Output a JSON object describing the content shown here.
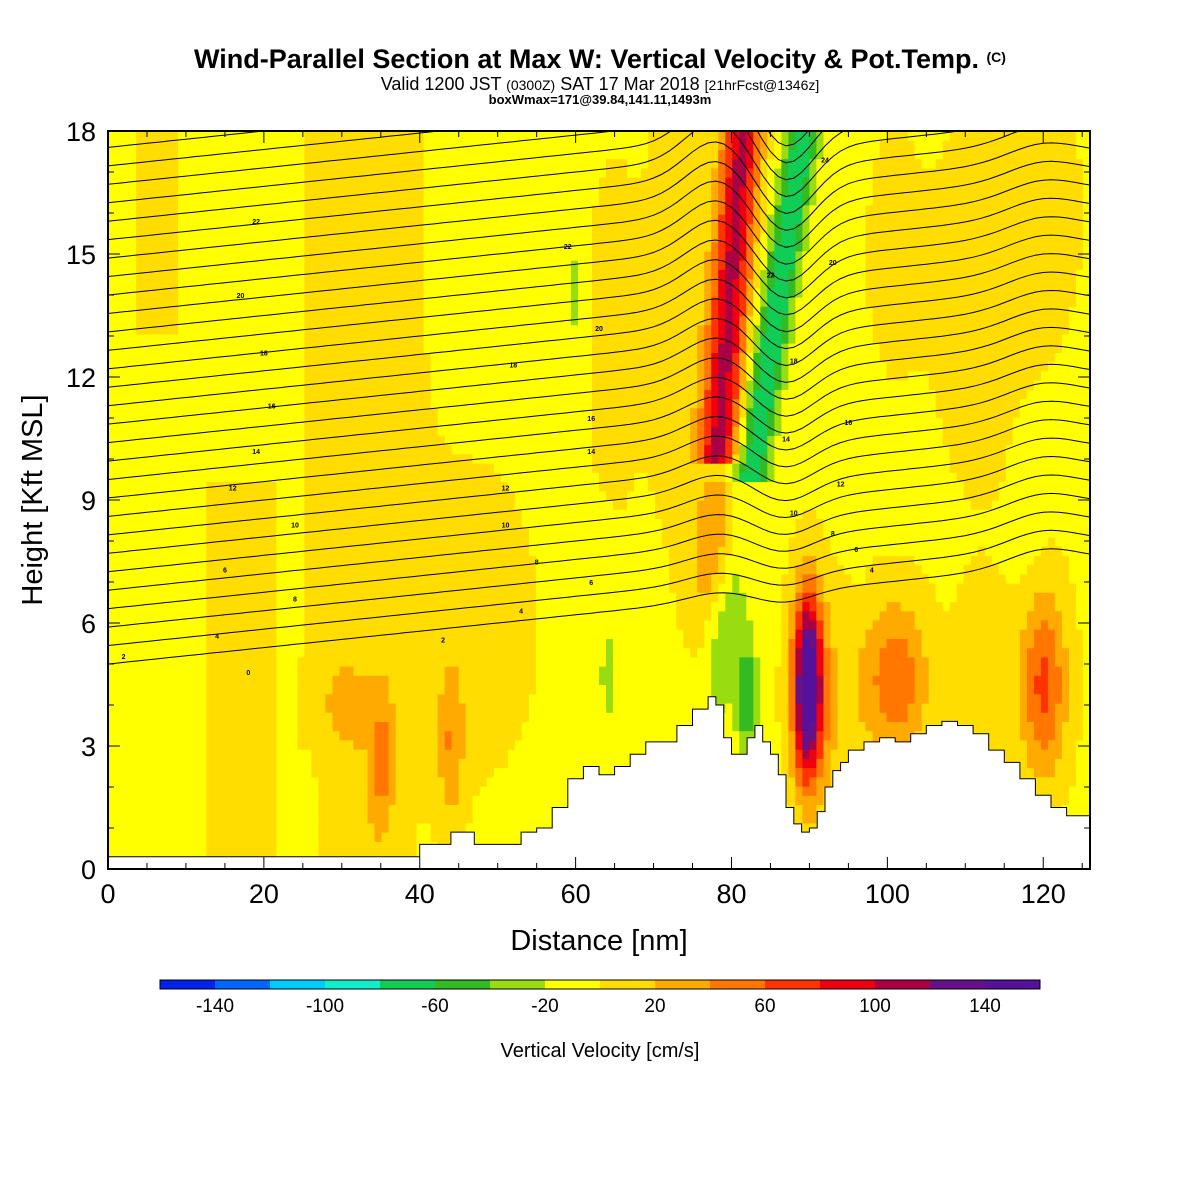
{
  "title": {
    "main": "Wind-Parallel Section at Max W: Vertical Velocity & Pot.Temp.",
    "copyright": "(C)",
    "valid_prefix": "Valid 1200 JST",
    "valid_utc": "(0300Z)",
    "valid_date": "SAT 17 Mar 2018",
    "forecast": "[21hrFcst@1346z]",
    "boxmax": "boxWmax=171@39.84,141.11,1493m"
  },
  "chart_data": {
    "type": "heatmap",
    "xlabel": "Distance [nm]",
    "ylabel": "Height [Kft MSL]",
    "xlim": [
      0,
      126
    ],
    "ylim": [
      0,
      18
    ],
    "xticks": [
      0,
      20,
      40,
      60,
      80,
      100,
      120
    ],
    "yticks": [
      0,
      3,
      6,
      9,
      12,
      15,
      18
    ],
    "colorbar": {
      "label": "Vertical Velocity [cm/s]",
      "tick_labels": [
        -140,
        -100,
        -60,
        -20,
        20,
        60,
        100,
        140
      ],
      "levels": [
        -160,
        -140,
        -120,
        -100,
        -80,
        -60,
        -40,
        -20,
        0,
        20,
        40,
        60,
        80,
        100,
        120,
        140,
        160
      ],
      "colors": [
        "#0022ee",
        "#0066ff",
        "#00ccff",
        "#11eecc",
        "#11cc55",
        "#33bb22",
        "#99dd11",
        "#ffff00",
        "#ffdd00",
        "#ffaa00",
        "#ff7700",
        "#ff3300",
        "#ee0011",
        "#aa0044",
        "#661188",
        "#551199"
      ]
    },
    "features": [
      {
        "name": "downdraft",
        "w": -70,
        "x": 86,
        "z_range": [
          10,
          18
        ]
      },
      {
        "name": "updraft",
        "w": 100,
        "x": 79,
        "z_range": [
          11,
          18
        ]
      },
      {
        "name": "updraft",
        "w": 171,
        "x": 89.5,
        "z_range": [
          1.5,
          6.5
        ]
      },
      {
        "name": "updraft",
        "w": 50,
        "x": 101,
        "z_range": [
          3,
          6
        ]
      },
      {
        "name": "updraft",
        "w": 70,
        "x": 120,
        "z_range": [
          2,
          5
        ]
      }
    ],
    "terrain_kft": {
      "x": [
        0,
        40,
        40,
        44,
        47,
        50,
        53,
        55,
        57,
        59,
        61,
        63,
        65,
        67,
        69,
        71,
        73,
        75,
        77,
        78,
        79,
        80,
        82,
        83,
        84,
        85,
        86,
        87,
        88,
        89,
        90,
        91,
        92,
        93,
        94,
        95,
        97,
        99,
        101,
        103,
        105,
        107,
        109,
        111,
        113,
        115,
        117,
        119,
        121,
        123,
        126
      ],
      "z": [
        0.3,
        0.3,
        0.6,
        0.9,
        0.6,
        0.6,
        0.9,
        1.0,
        1.5,
        2.2,
        2.5,
        2.3,
        2.5,
        2.8,
        3.1,
        3.1,
        3.5,
        3.9,
        4.2,
        4.0,
        3.2,
        2.8,
        3.2,
        3.5,
        3.1,
        2.8,
        2.3,
        1.5,
        1.1,
        0.9,
        1.0,
        1.4,
        2.0,
        2.4,
        2.6,
        2.9,
        3.1,
        3.2,
        3.1,
        3.3,
        3.5,
        3.6,
        3.5,
        3.3,
        2.9,
        2.6,
        2.2,
        1.8,
        1.5,
        1.3,
        1.3
      ]
    },
    "theta_contour_labels": [
      {
        "x": 2,
        "z": 5.2,
        "label": "2"
      },
      {
        "x": 14,
        "z": 5.7,
        "label": "4"
      },
      {
        "x": 15,
        "z": 7.3,
        "label": "6"
      },
      {
        "x": 16,
        "z": 9.3,
        "label": "12"
      },
      {
        "x": 19,
        "z": 10.2,
        "label": "14"
      },
      {
        "x": 21,
        "z": 11.3,
        "label": "16"
      },
      {
        "x": 20,
        "z": 12.6,
        "label": "18"
      },
      {
        "x": 17,
        "z": 14.0,
        "label": "20"
      },
      {
        "x": 19,
        "z": 15.8,
        "label": "22"
      },
      {
        "x": 18,
        "z": 4.8,
        "label": "0"
      },
      {
        "x": 24,
        "z": 6.6,
        "label": "8"
      },
      {
        "x": 24,
        "z": 8.4,
        "label": "10"
      },
      {
        "x": 43,
        "z": 5.6,
        "label": "2"
      },
      {
        "x": 53,
        "z": 6.3,
        "label": "4"
      },
      {
        "x": 55,
        "z": 7.5,
        "label": "8"
      },
      {
        "x": 51,
        "z": 8.4,
        "label": "10"
      },
      {
        "x": 51,
        "z": 9.3,
        "label": "12"
      },
      {
        "x": 52,
        "z": 12.3,
        "label": "18"
      },
      {
        "x": 62,
        "z": 7.0,
        "label": "6"
      },
      {
        "x": 62,
        "z": 10.2,
        "label": "14"
      },
      {
        "x": 62,
        "z": 11.0,
        "label": "16"
      },
      {
        "x": 63,
        "z": 13.2,
        "label": "20"
      },
      {
        "x": 59,
        "z": 15.2,
        "label": "22"
      },
      {
        "x": 85,
        "z": 14.5,
        "label": "22"
      },
      {
        "x": 88,
        "z": 12.4,
        "label": "18"
      },
      {
        "x": 87,
        "z": 10.5,
        "label": "14"
      },
      {
        "x": 88,
        "z": 8.7,
        "label": "10"
      },
      {
        "x": 93,
        "z": 8.2,
        "label": "8"
      },
      {
        "x": 96,
        "z": 7.8,
        "label": "6"
      },
      {
        "x": 98,
        "z": 7.3,
        "label": "4"
      },
      {
        "x": 94,
        "z": 9.4,
        "label": "12"
      },
      {
        "x": 95,
        "z": 10.9,
        "label": "16"
      },
      {
        "x": 93,
        "z": 14.8,
        "label": "20"
      },
      {
        "x": 92,
        "z": 17.3,
        "label": "24"
      }
    ]
  }
}
